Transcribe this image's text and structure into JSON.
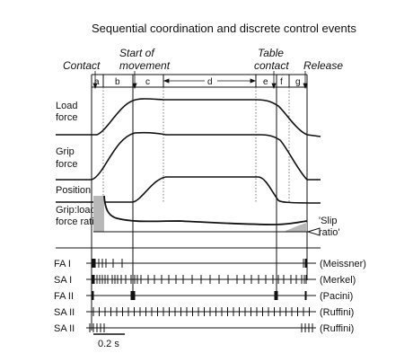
{
  "title": "Sequential coordination and discrete control events",
  "events": [
    {
      "id": "contact",
      "label_lines": [
        "Contact"
      ]
    },
    {
      "id": "start",
      "label_lines": [
        "Start of",
        "movement"
      ]
    },
    {
      "id": "table",
      "label_lines": [
        "Table",
        "contact"
      ]
    },
    {
      "id": "release",
      "label_lines": [
        "Release"
      ]
    }
  ],
  "phases": [
    "a",
    "b",
    "c",
    "d",
    "e",
    "f",
    "g"
  ],
  "traces": [
    {
      "id": "load",
      "label_lines": [
        "Load",
        "force"
      ]
    },
    {
      "id": "grip",
      "label_lines": [
        "Grip",
        "force"
      ]
    },
    {
      "id": "position",
      "label_lines": [
        "Position"
      ]
    },
    {
      "id": "ratio",
      "label_lines": [
        "Grip:load",
        "force ratio"
      ]
    }
  ],
  "slip_ratio_label": [
    "'Slip",
    "ratio'"
  ],
  "afferents": [
    {
      "type": "FA I",
      "receptor": "(Meissner)"
    },
    {
      "type": "SA I",
      "receptor": "(Merkel)"
    },
    {
      "type": "FA II",
      "receptor": "(Pacini)"
    },
    {
      "type": "SA II",
      "receptor": "(Ruffini)"
    },
    {
      "type": "SA II",
      "receptor": "(Ruffini)"
    }
  ],
  "scale_bar_label": "0.2 s"
}
